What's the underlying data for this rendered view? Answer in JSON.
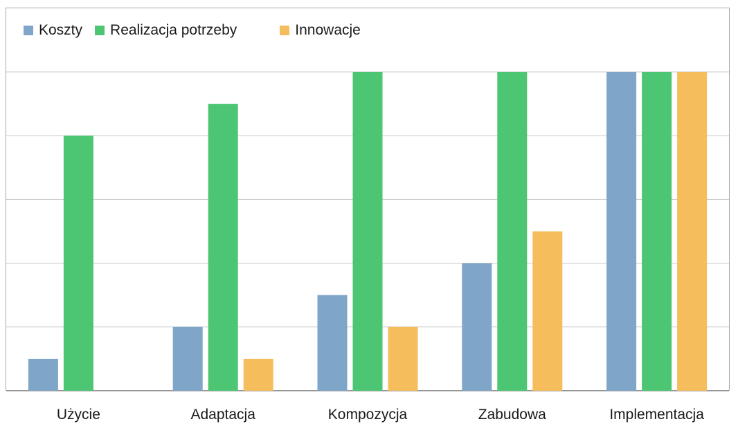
{
  "chart_data": {
    "type": "bar",
    "title": "",
    "xlabel": "",
    "ylabel": "",
    "categories": [
      "Użycie",
      "Adaptacja",
      "Kompozycja",
      "Zabudowa",
      "Implementacja"
    ],
    "series": [
      {
        "name": "Koszty",
        "color": "#7fa5c8",
        "values": [
          0.5,
          1,
          1.5,
          2,
          5
        ]
      },
      {
        "name": "Realizacja potrzeby",
        "color": "#4cc672",
        "values": [
          4,
          4.5,
          5,
          5,
          5
        ]
      },
      {
        "name": "Innowacje",
        "color": "#f5bd5c",
        "values": [
          0,
          0.5,
          1,
          2.5,
          5
        ]
      }
    ],
    "ylim": [
      0,
      5
    ],
    "grid": true,
    "legend": "top-left"
  }
}
